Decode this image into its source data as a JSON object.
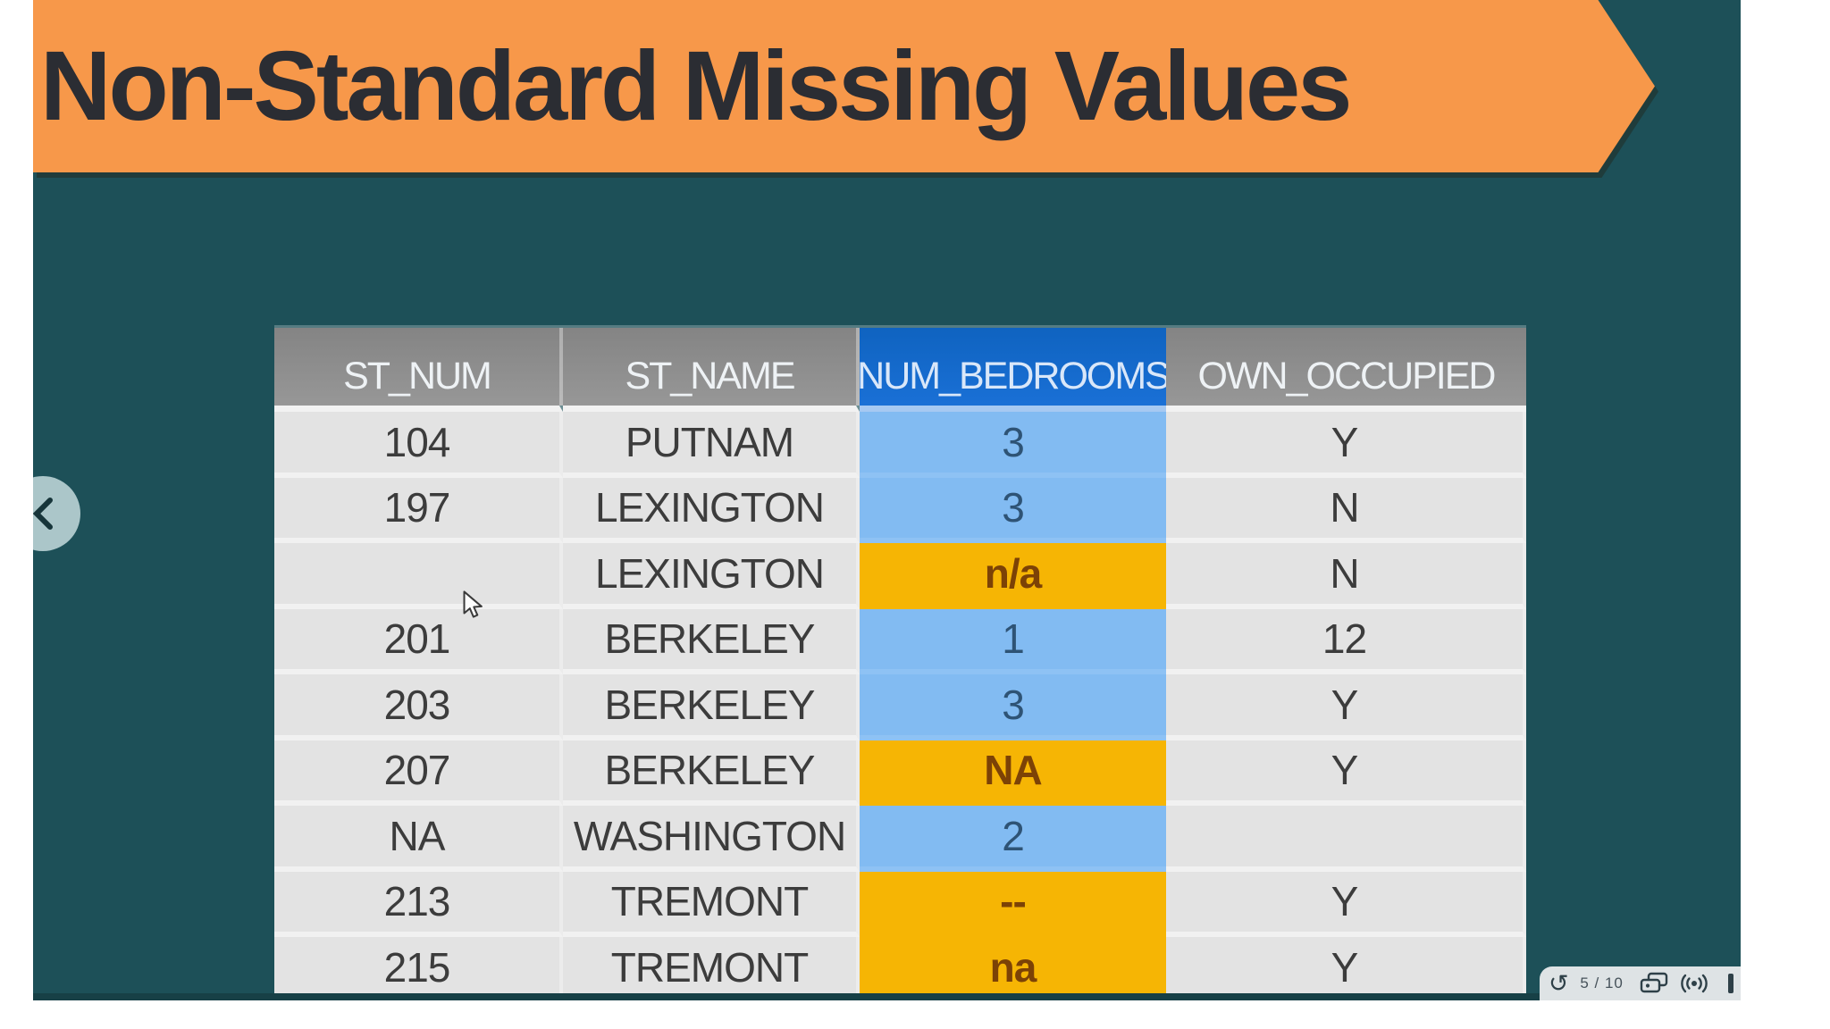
{
  "slide": {
    "title": "Non-Standard Missing Values",
    "colors": {
      "background": "#1d5058",
      "banner": "#f7984a",
      "title_text": "#2b2d33",
      "bottom_edge": "#174046"
    }
  },
  "nav": {
    "prev_icon": "chevron-left"
  },
  "table": {
    "columns": [
      {
        "label": "ST_NUM",
        "style": "gray"
      },
      {
        "label": "ST_NAME",
        "style": "gray"
      },
      {
        "label": "NUM_BEDROOMS",
        "style": "blue"
      },
      {
        "label": "OWN_OCCUPIED",
        "style": "gray"
      }
    ],
    "rows": [
      {
        "st_num": "104",
        "st_name": "PUTNAM",
        "num_bedrooms": "3",
        "bedrooms_style": "blue",
        "own_occupied": "Y"
      },
      {
        "st_num": "197",
        "st_name": "LEXINGTON",
        "num_bedrooms": "3",
        "bedrooms_style": "blue",
        "own_occupied": "N"
      },
      {
        "st_num": "",
        "st_name": "LEXINGTON",
        "num_bedrooms": "n/a",
        "bedrooms_style": "orange",
        "own_occupied": "N"
      },
      {
        "st_num": "201",
        "st_name": "BERKELEY",
        "num_bedrooms": "1",
        "bedrooms_style": "blue",
        "own_occupied": "12"
      },
      {
        "st_num": "203",
        "st_name": "BERKELEY",
        "num_bedrooms": "3",
        "bedrooms_style": "blue",
        "own_occupied": "Y"
      },
      {
        "st_num": "207",
        "st_name": "BERKELEY",
        "num_bedrooms": "NA",
        "bedrooms_style": "orange",
        "own_occupied": "Y"
      },
      {
        "st_num": "NA",
        "st_name": "WASHINGTON",
        "num_bedrooms": "2",
        "bedrooms_style": "blue",
        "own_occupied": ""
      },
      {
        "st_num": "213",
        "st_name": "TREMONT",
        "num_bedrooms": "--",
        "bedrooms_style": "orange",
        "own_occupied": "Y"
      },
      {
        "st_num": "215",
        "st_name": "TREMONT",
        "num_bedrooms": "na",
        "bedrooms_style": "orange",
        "own_occupied": "Y"
      }
    ],
    "colors": {
      "header_gray": "#8d8d8d",
      "header_blue": "#1469cb",
      "cell_gray": "#e3e3e3",
      "cell_blue": "#82bbf2",
      "cell_orange": "#f6b504",
      "header_text": "#eef2f5",
      "cell_text": "#3c3c3c",
      "blue_cell_text": "#2e5375",
      "orange_cell_text": "#7c4206"
    }
  },
  "player": {
    "replay_glyph": "↺",
    "counter": "5 / 10",
    "icons": [
      "replay",
      "flashcards",
      "audio-broadcast"
    ],
    "colors": {
      "bar": "#dee3e5",
      "icon": "#2e4048"
    }
  }
}
